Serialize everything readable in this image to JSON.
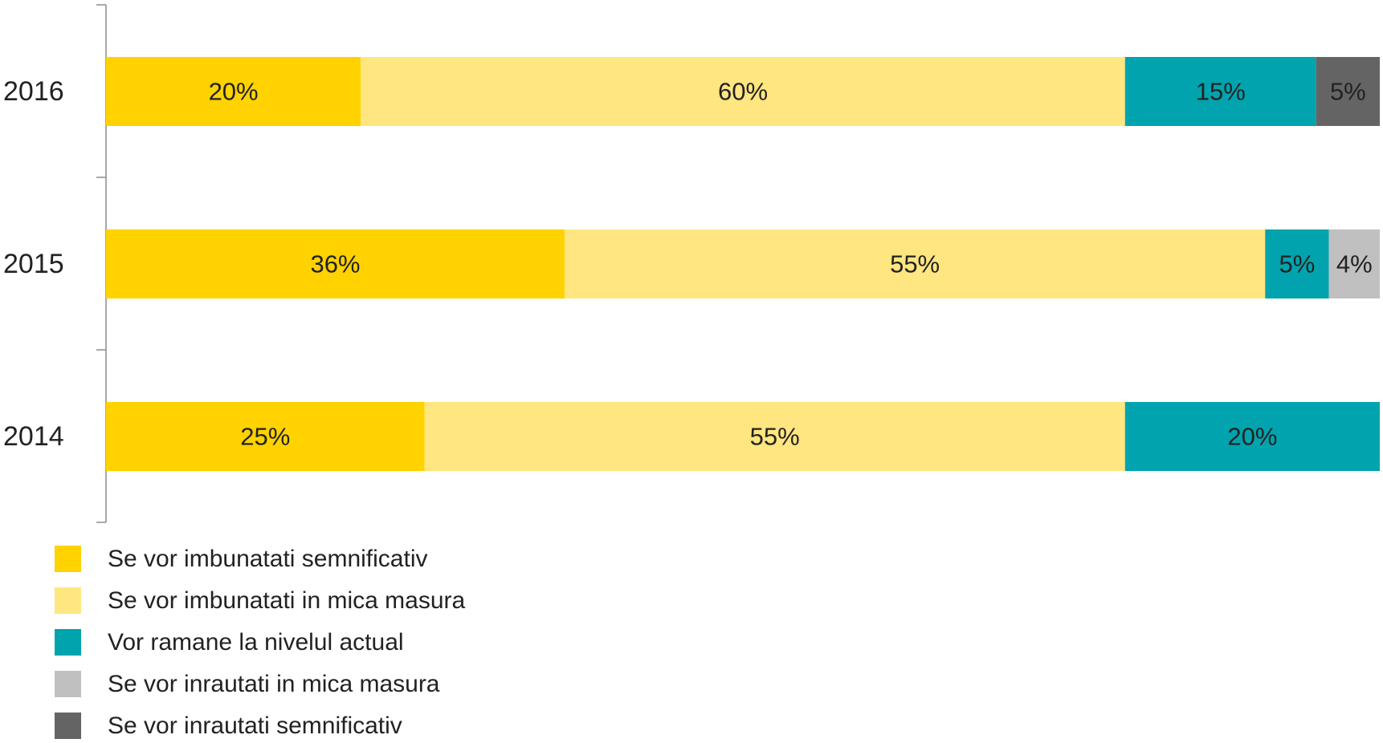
{
  "chart_data": {
    "type": "bar",
    "orientation": "horizontal",
    "stacked": true,
    "categories": [
      "2016",
      "2015",
      "2014"
    ],
    "xlim": [
      0,
      100
    ],
    "grid": false,
    "legend_position": "bottom-left",
    "series": [
      {
        "name": "Se vor imbunatati semnificativ",
        "color": "#FFD200",
        "values": [
          20,
          36,
          25
        ],
        "labels": [
          "20%",
          "36%",
          "25%"
        ]
      },
      {
        "name": "Se vor imbunatati in mica masura",
        "color": "#FFE680",
        "values": [
          60,
          55,
          55
        ],
        "labels": [
          "60%",
          "55%",
          "55%"
        ]
      },
      {
        "name": "Vor ramane la nivelul actual",
        "color": "#00A3AE",
        "values": [
          15,
          5,
          20
        ],
        "labels": [
          "15%",
          "5%",
          "20%"
        ]
      },
      {
        "name": "Se vor inrautati in mica masura",
        "color": "#C0C0C0",
        "values": [
          0,
          4,
          0
        ],
        "labels": [
          "",
          "4%",
          ""
        ]
      },
      {
        "name": "Se vor inrautati semnificativ",
        "color": "#646464",
        "values": [
          5,
          0,
          0
        ],
        "labels": [
          "5%",
          "",
          ""
        ]
      }
    ]
  }
}
